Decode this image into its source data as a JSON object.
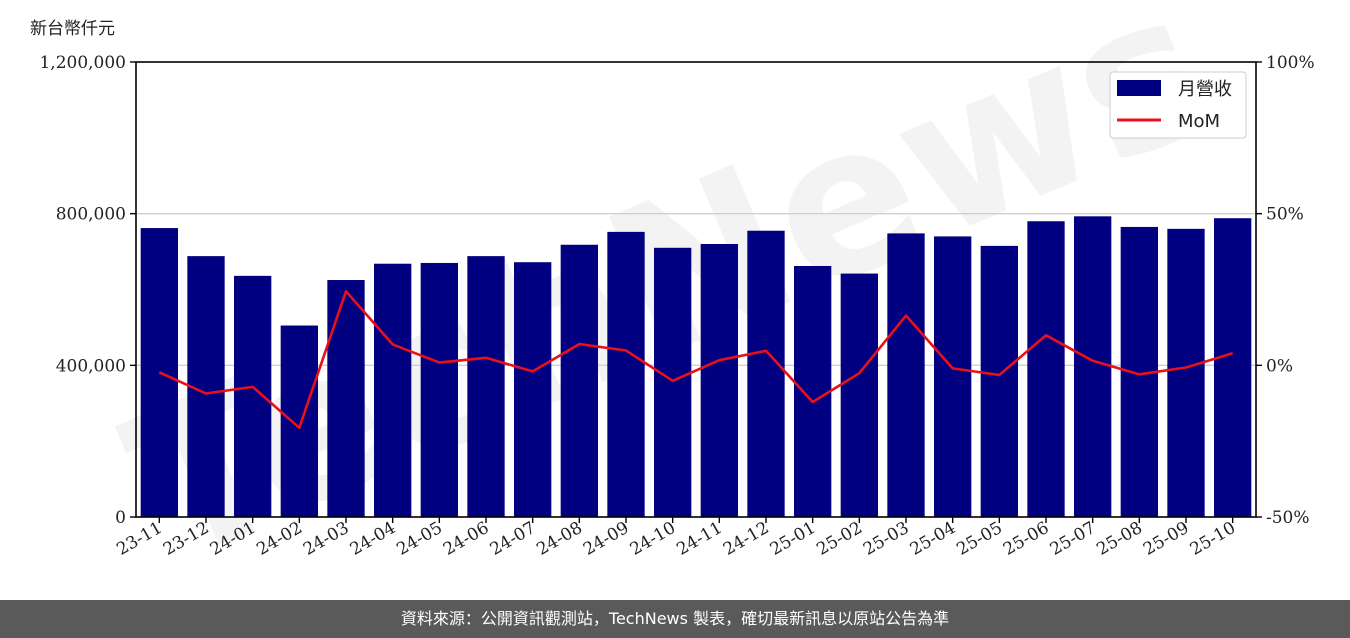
{
  "chart_data": {
    "type": "bar",
    "unit_label": "新台幣仟元",
    "categories": [
      "23-11",
      "23-12",
      "24-01",
      "24-02",
      "24-03",
      "24-04",
      "24-05",
      "24-06",
      "24-07",
      "24-08",
      "24-09",
      "24-10",
      "24-11",
      "24-12",
      "25-01",
      "25-02",
      "25-03",
      "25-04",
      "25-05",
      "25-06",
      "25-07",
      "25-08",
      "25-09",
      "25-10"
    ],
    "series": [
      {
        "name": "月營收",
        "type": "bar",
        "axis": "left",
        "color": "#000080",
        "values": [
          762000,
          688000,
          636000,
          505000,
          625000,
          668000,
          670000,
          688000,
          672000,
          718000,
          752000,
          710000,
          720000,
          755000,
          662000,
          642000,
          748000,
          740000,
          715000,
          780000,
          793000,
          765000,
          760000,
          788000
        ]
      },
      {
        "name": "MoM",
        "type": "line",
        "axis": "right",
        "color": "#e8101a",
        "values": [
          -2.3,
          -9.3,
          -7.1,
          -20.6,
          24.4,
          6.9,
          0.9,
          2.5,
          -2.0,
          7.0,
          4.9,
          -5.1,
          1.7,
          4.8,
          -12.1,
          -2.6,
          16.4,
          -1.0,
          -3.2,
          9.9,
          1.5,
          -3.0,
          -0.7,
          4.0
        ]
      }
    ],
    "y_left": {
      "lim": [
        0,
        1200000
      ],
      "ticks": [
        0,
        400000,
        800000,
        1200000
      ],
      "tick_labels": [
        "0",
        "400,000",
        "800,000",
        "1,200,000"
      ]
    },
    "y_right": {
      "lim": [
        -50,
        100
      ],
      "ticks": [
        -50,
        0,
        50,
        100
      ],
      "tick_labels": [
        "-50%",
        "0%",
        "50%",
        "100%"
      ]
    },
    "grid": "horizontal",
    "legend_position": "top-right"
  },
  "footer_text": "資料來源：公開資訊觀測站，TechNews 製表，確切最新訊息以原站公告為準",
  "watermark_text": "TechNews"
}
